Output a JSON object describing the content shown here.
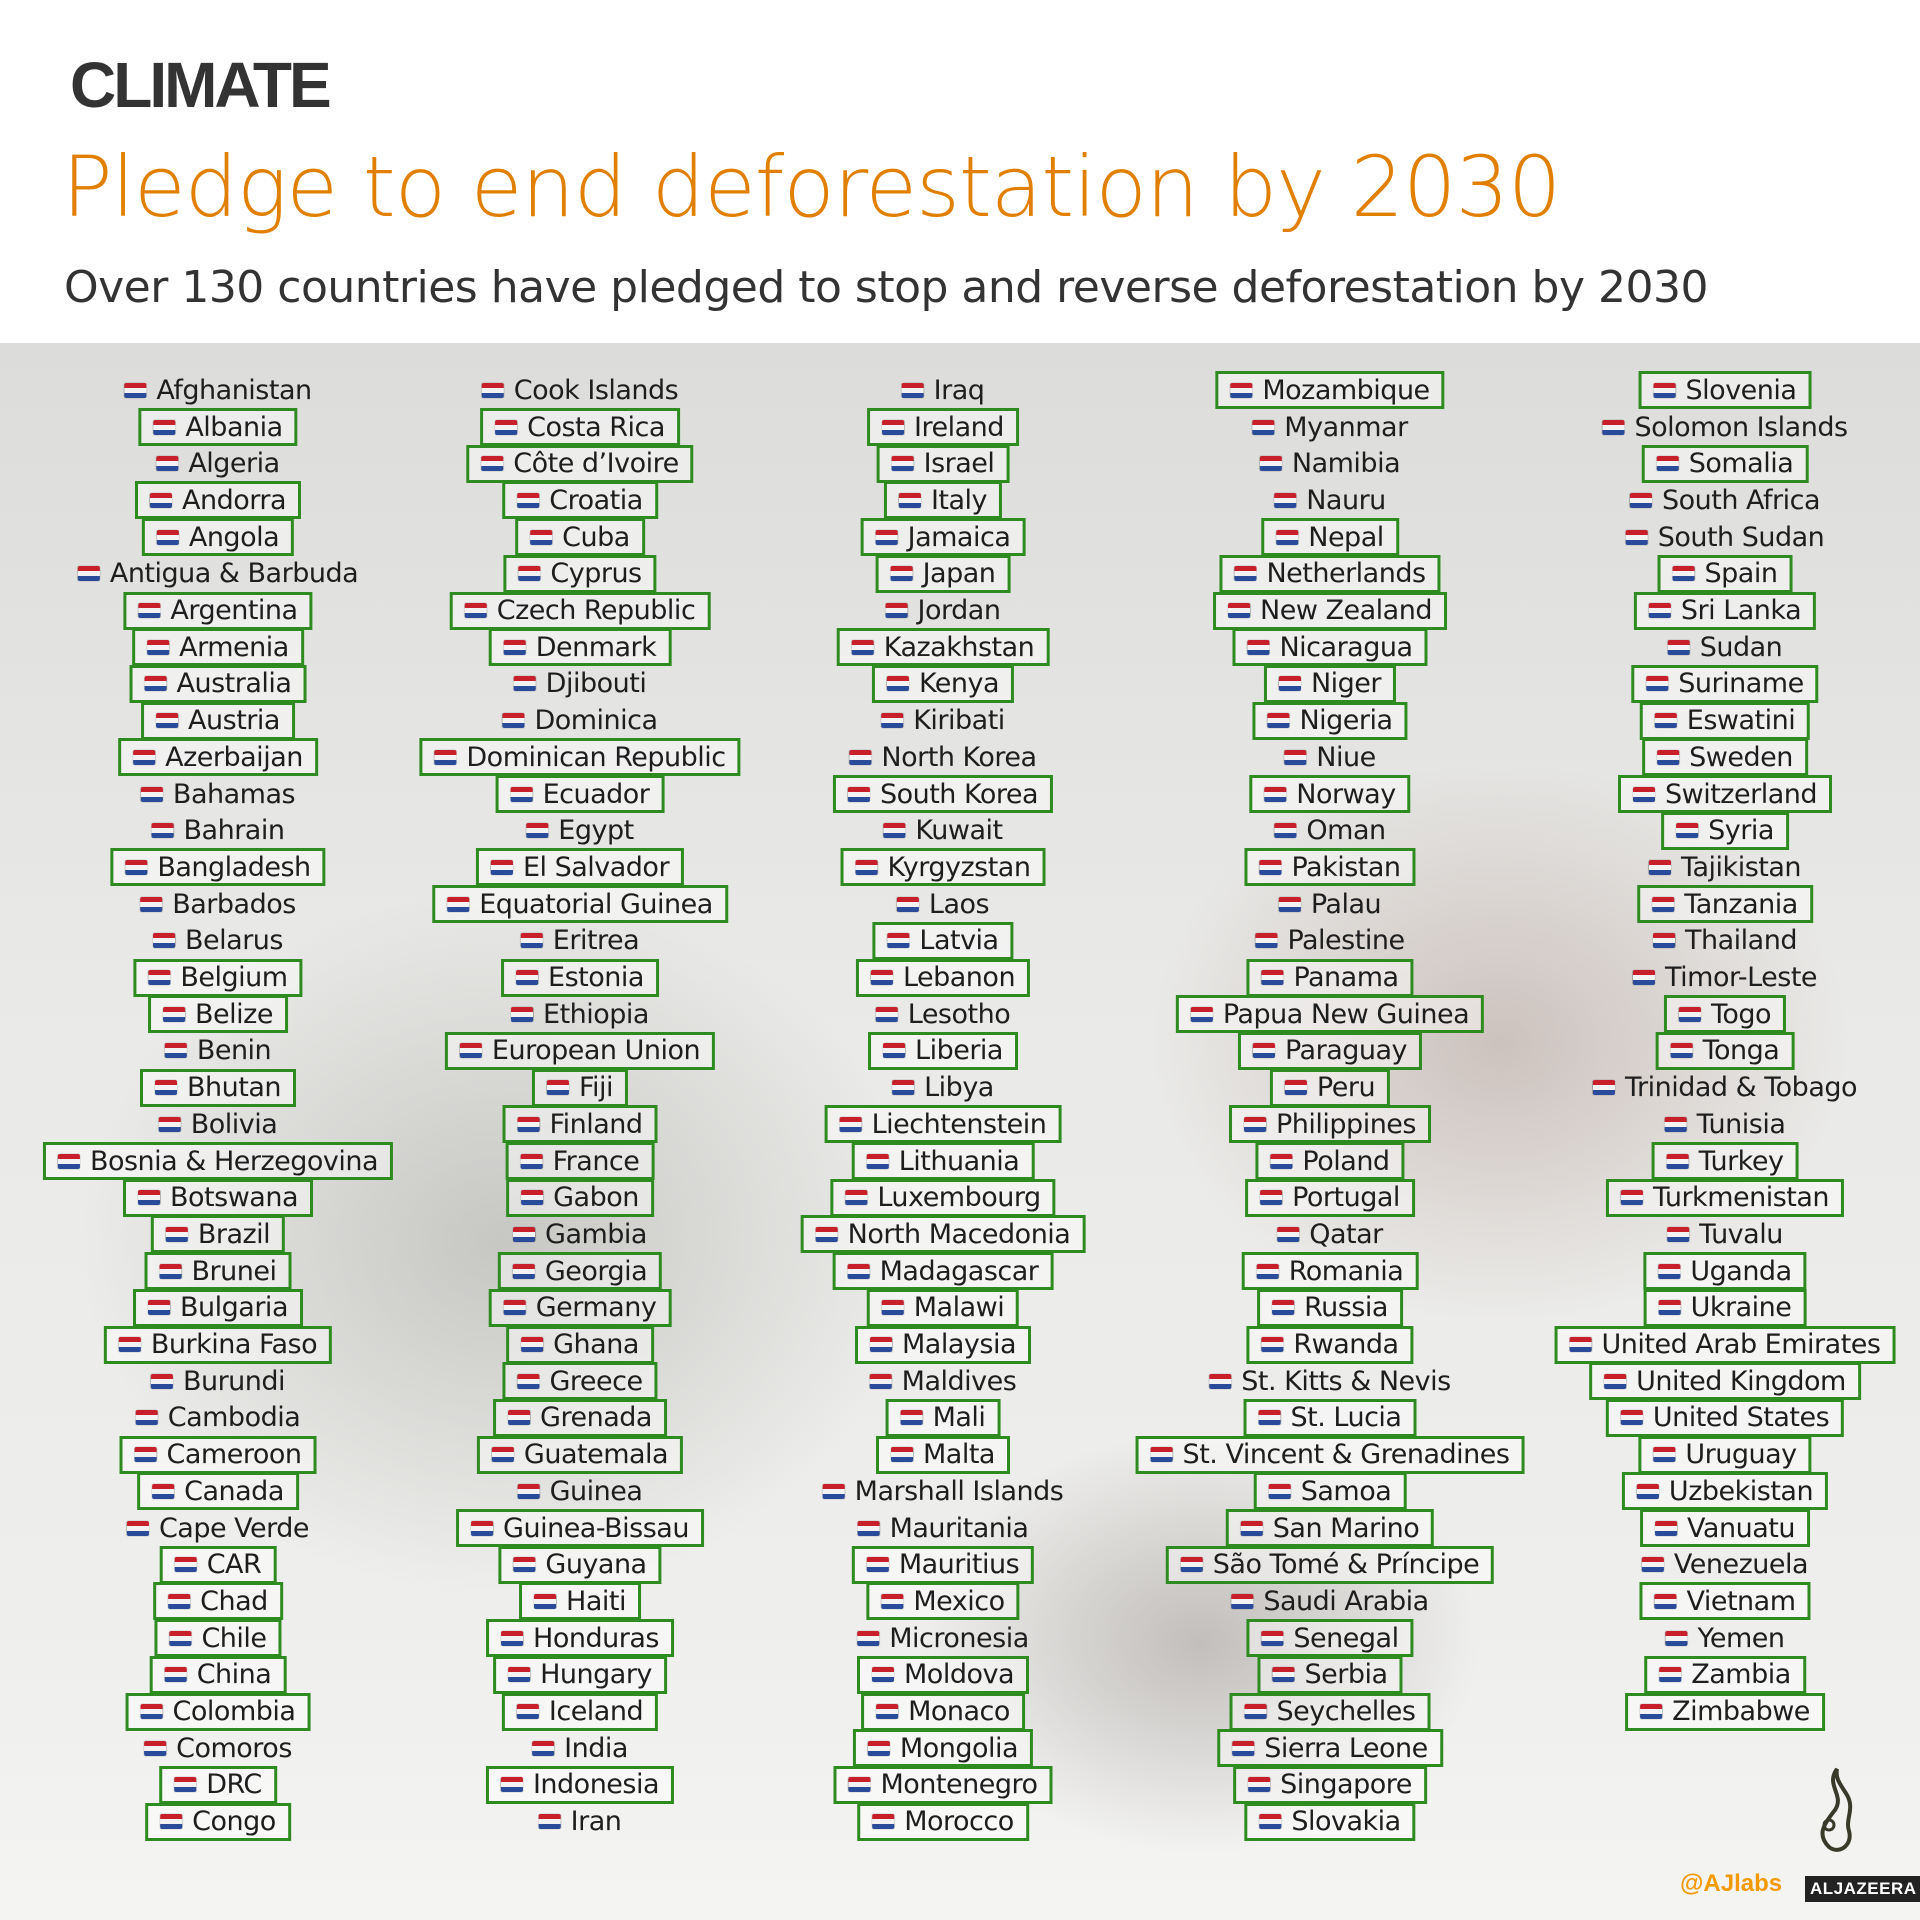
{
  "header": {
    "kicker": "CLIMATE",
    "title": "Pledge to end deforestation by 2030",
    "subtitle": "Over 130 countries have pledged to stop and reverse deforestation by 2030"
  },
  "colors": {
    "title": "#e07f00",
    "box_border": "#2e8b1f",
    "credit": "#f39a00"
  },
  "columns": [
    [
      {
        "n": "Afghanistan",
        "b": false
      },
      {
        "n": "Albania",
        "b": true
      },
      {
        "n": "Algeria",
        "b": false
      },
      {
        "n": "Andorra",
        "b": true
      },
      {
        "n": "Angola",
        "b": true
      },
      {
        "n": "Antigua & Barbuda",
        "b": false
      },
      {
        "n": "Argentina",
        "b": true
      },
      {
        "n": "Armenia",
        "b": true
      },
      {
        "n": "Australia",
        "b": true
      },
      {
        "n": "Austria",
        "b": true
      },
      {
        "n": "Azerbaijan",
        "b": true
      },
      {
        "n": "Bahamas",
        "b": false
      },
      {
        "n": "Bahrain",
        "b": false
      },
      {
        "n": "Bangladesh",
        "b": true
      },
      {
        "n": "Barbados",
        "b": false
      },
      {
        "n": "Belarus",
        "b": false
      },
      {
        "n": "Belgium",
        "b": true
      },
      {
        "n": "Belize",
        "b": true
      },
      {
        "n": "Benin",
        "b": false
      },
      {
        "n": "Bhutan",
        "b": true
      },
      {
        "n": "Bolivia",
        "b": false
      },
      {
        "n": "Bosnia & Herzegovina",
        "b": true
      },
      {
        "n": "Botswana",
        "b": true
      },
      {
        "n": "Brazil",
        "b": true
      },
      {
        "n": "Brunei",
        "b": true
      },
      {
        "n": "Bulgaria",
        "b": true
      },
      {
        "n": "Burkina Faso",
        "b": true
      },
      {
        "n": "Burundi",
        "b": false
      },
      {
        "n": "Cambodia",
        "b": false
      },
      {
        "n": "Cameroon",
        "b": true
      },
      {
        "n": "Canada",
        "b": true
      },
      {
        "n": "Cape Verde",
        "b": false
      },
      {
        "n": "CAR",
        "b": true
      },
      {
        "n": "Chad",
        "b": true
      },
      {
        "n": "Chile",
        "b": true
      },
      {
        "n": "China",
        "b": true
      },
      {
        "n": "Colombia",
        "b": true
      },
      {
        "n": "Comoros",
        "b": false
      },
      {
        "n": "DRC",
        "b": true
      },
      {
        "n": "Congo",
        "b": true
      }
    ],
    [
      {
        "n": "Cook Islands",
        "b": false
      },
      {
        "n": "Costa Rica",
        "b": true
      },
      {
        "n": "Côte d’Ivoire",
        "b": true
      },
      {
        "n": "Croatia",
        "b": true
      },
      {
        "n": "Cuba",
        "b": true
      },
      {
        "n": "Cyprus",
        "b": true
      },
      {
        "n": "Czech Republic",
        "b": true
      },
      {
        "n": "Denmark",
        "b": true
      },
      {
        "n": "Djibouti",
        "b": false
      },
      {
        "n": "Dominica",
        "b": false
      },
      {
        "n": "Dominican Republic",
        "b": true
      },
      {
        "n": "Ecuador",
        "b": true
      },
      {
        "n": "Egypt",
        "b": false
      },
      {
        "n": "El Salvador",
        "b": true
      },
      {
        "n": "Equatorial Guinea",
        "b": true
      },
      {
        "n": "Eritrea",
        "b": false
      },
      {
        "n": "Estonia",
        "b": true
      },
      {
        "n": "Ethiopia",
        "b": false
      },
      {
        "n": "European Union",
        "b": true
      },
      {
        "n": "Fiji",
        "b": true
      },
      {
        "n": "Finland",
        "b": true
      },
      {
        "n": "France",
        "b": true
      },
      {
        "n": "Gabon",
        "b": true
      },
      {
        "n": "Gambia",
        "b": false
      },
      {
        "n": "Georgia",
        "b": true
      },
      {
        "n": "Germany",
        "b": true
      },
      {
        "n": "Ghana",
        "b": true
      },
      {
        "n": "Greece",
        "b": true
      },
      {
        "n": "Grenada",
        "b": true
      },
      {
        "n": "Guatemala",
        "b": true
      },
      {
        "n": "Guinea",
        "b": false
      },
      {
        "n": "Guinea-Bissau",
        "b": true
      },
      {
        "n": "Guyana",
        "b": true
      },
      {
        "n": "Haiti",
        "b": true
      },
      {
        "n": "Honduras",
        "b": true
      },
      {
        "n": "Hungary",
        "b": true
      },
      {
        "n": "Iceland",
        "b": true
      },
      {
        "n": "India",
        "b": false
      },
      {
        "n": "Indonesia",
        "b": true
      },
      {
        "n": "Iran",
        "b": false
      }
    ],
    [
      {
        "n": "Iraq",
        "b": false
      },
      {
        "n": "Ireland",
        "b": true
      },
      {
        "n": "Israel",
        "b": true
      },
      {
        "n": "Italy",
        "b": true
      },
      {
        "n": "Jamaica",
        "b": true
      },
      {
        "n": "Japan",
        "b": true
      },
      {
        "n": "Jordan",
        "b": false
      },
      {
        "n": "Kazakhstan",
        "b": true
      },
      {
        "n": "Kenya",
        "b": true
      },
      {
        "n": "Kiribati",
        "b": false
      },
      {
        "n": "North Korea",
        "b": false
      },
      {
        "n": "South Korea",
        "b": true
      },
      {
        "n": "Kuwait",
        "b": false
      },
      {
        "n": "Kyrgyzstan",
        "b": true
      },
      {
        "n": "Laos",
        "b": false
      },
      {
        "n": "Latvia",
        "b": true
      },
      {
        "n": "Lebanon",
        "b": true
      },
      {
        "n": "Lesotho",
        "b": false
      },
      {
        "n": "Liberia",
        "b": true
      },
      {
        "n": "Libya",
        "b": false
      },
      {
        "n": "Liechtenstein",
        "b": true
      },
      {
        "n": "Lithuania",
        "b": true
      },
      {
        "n": "Luxembourg",
        "b": true
      },
      {
        "n": "North Macedonia",
        "b": true
      },
      {
        "n": "Madagascar",
        "b": true
      },
      {
        "n": "Malawi",
        "b": true
      },
      {
        "n": "Malaysia",
        "b": true
      },
      {
        "n": "Maldives",
        "b": false
      },
      {
        "n": "Mali",
        "b": true
      },
      {
        "n": "Malta",
        "b": true
      },
      {
        "n": "Marshall Islands",
        "b": false
      },
      {
        "n": "Mauritania",
        "b": false
      },
      {
        "n": "Mauritius",
        "b": true
      },
      {
        "n": "Mexico",
        "b": true
      },
      {
        "n": "Micronesia",
        "b": false
      },
      {
        "n": "Moldova",
        "b": true
      },
      {
        "n": "Monaco",
        "b": true
      },
      {
        "n": "Mongolia",
        "b": true
      },
      {
        "n": "Montenegro",
        "b": true
      },
      {
        "n": "Morocco",
        "b": true
      }
    ],
    [
      {
        "n": "Mozambique",
        "b": true
      },
      {
        "n": "Myanmar",
        "b": false
      },
      {
        "n": "Namibia",
        "b": false
      },
      {
        "n": "Nauru",
        "b": false
      },
      {
        "n": "Nepal",
        "b": true
      },
      {
        "n": "Netherlands",
        "b": true
      },
      {
        "n": "New Zealand",
        "b": true
      },
      {
        "n": "Nicaragua",
        "b": true
      },
      {
        "n": "Niger",
        "b": true
      },
      {
        "n": "Nigeria",
        "b": true
      },
      {
        "n": "Niue",
        "b": false
      },
      {
        "n": "Norway",
        "b": true
      },
      {
        "n": "Oman",
        "b": false
      },
      {
        "n": "Pakistan",
        "b": true
      },
      {
        "n": "Palau",
        "b": false
      },
      {
        "n": "Palestine",
        "b": false
      },
      {
        "n": "Panama",
        "b": true
      },
      {
        "n": "Papua New Guinea",
        "b": true
      },
      {
        "n": "Paraguay",
        "b": true
      },
      {
        "n": "Peru",
        "b": true
      },
      {
        "n": "Philippines",
        "b": true
      },
      {
        "n": "Poland",
        "b": true
      },
      {
        "n": "Portugal",
        "b": true
      },
      {
        "n": "Qatar",
        "b": false
      },
      {
        "n": "Romania",
        "b": true
      },
      {
        "n": "Russia",
        "b": true
      },
      {
        "n": "Rwanda",
        "b": true
      },
      {
        "n": "St. Kitts & Nevis",
        "b": false
      },
      {
        "n": "St. Lucia",
        "b": true
      },
      {
        "n": "St. Vincent & Grenadines",
        "b": true
      },
      {
        "n": "Samoa",
        "b": true
      },
      {
        "n": "San Marino",
        "b": true
      },
      {
        "n": "São Tomé & Príncipe",
        "b": true
      },
      {
        "n": "Saudi Arabia",
        "b": false
      },
      {
        "n": "Senegal",
        "b": true
      },
      {
        "n": "Serbia",
        "b": true
      },
      {
        "n": "Seychelles",
        "b": true
      },
      {
        "n": "Sierra Leone",
        "b": true
      },
      {
        "n": "Singapore",
        "b": true
      },
      {
        "n": "Slovakia",
        "b": true
      }
    ],
    [
      {
        "n": "Slovenia",
        "b": true
      },
      {
        "n": "Solomon Islands",
        "b": false
      },
      {
        "n": "Somalia",
        "b": true
      },
      {
        "n": "South Africa",
        "b": false
      },
      {
        "n": "South Sudan",
        "b": false
      },
      {
        "n": "Spain",
        "b": true
      },
      {
        "n": "Sri Lanka",
        "b": true
      },
      {
        "n": "Sudan",
        "b": false
      },
      {
        "n": "Suriname",
        "b": true
      },
      {
        "n": "Eswatini",
        "b": true
      },
      {
        "n": "Sweden",
        "b": true
      },
      {
        "n": "Switzerland",
        "b": true
      },
      {
        "n": "Syria",
        "b": true
      },
      {
        "n": "Tajikistan",
        "b": false
      },
      {
        "n": "Tanzania",
        "b": true
      },
      {
        "n": "Thailand",
        "b": false
      },
      {
        "n": "Timor-Leste",
        "b": false
      },
      {
        "n": "Togo",
        "b": true
      },
      {
        "n": "Tonga",
        "b": true
      },
      {
        "n": "Trinidad & Tobago",
        "b": false
      },
      {
        "n": "Tunisia",
        "b": false
      },
      {
        "n": "Turkey",
        "b": true
      },
      {
        "n": "Turkmenistan",
        "b": true
      },
      {
        "n": "Tuvalu",
        "b": false
      },
      {
        "n": "Uganda",
        "b": true
      },
      {
        "n": "Ukraine",
        "b": true
      },
      {
        "n": "United Arab Emirates",
        "b": true
      },
      {
        "n": "United Kingdom",
        "b": true
      },
      {
        "n": "United States",
        "b": true
      },
      {
        "n": "Uruguay",
        "b": true
      },
      {
        "n": "Uzbekistan",
        "b": true
      },
      {
        "n": "Vanuatu",
        "b": true
      },
      {
        "n": "Venezuela",
        "b": false
      },
      {
        "n": "Vietnam",
        "b": true
      },
      {
        "n": "Yemen",
        "b": false
      },
      {
        "n": "Zambia",
        "b": true
      },
      {
        "n": "Zimbabwe",
        "b": true
      }
    ]
  ],
  "footer": {
    "credit": "@AJlabs",
    "brand": "ALJAZEERA"
  }
}
